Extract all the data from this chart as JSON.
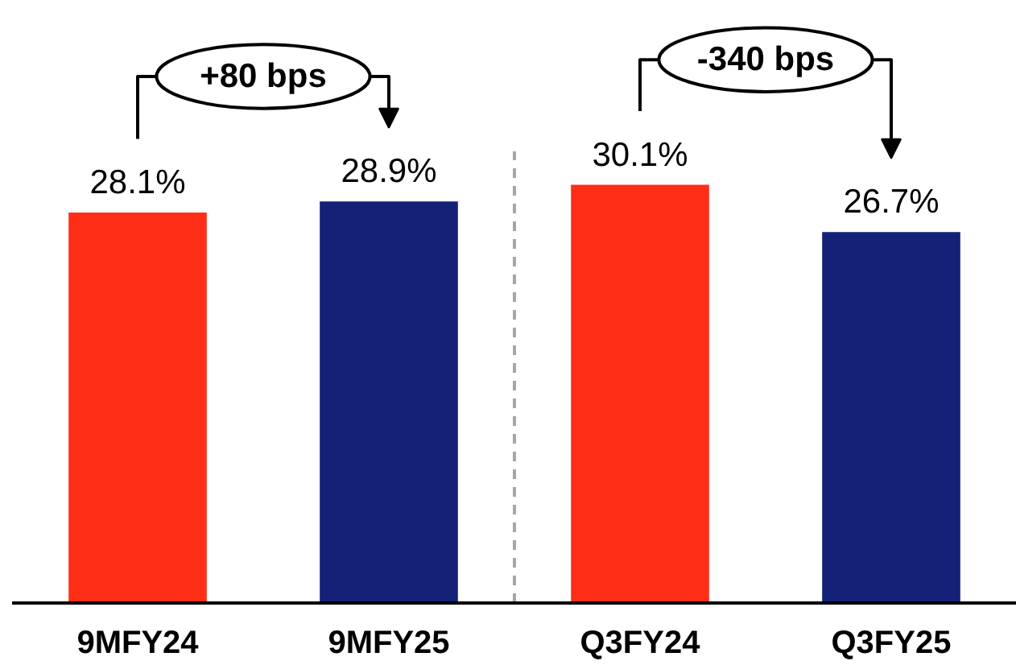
{
  "chart_data": {
    "type": "bar",
    "categories": [
      "9MFY24",
      "9MFY25",
      "Q3FY24",
      "Q3FY25"
    ],
    "values": [
      28.1,
      28.9,
      30.1,
      26.7
    ],
    "colors": [
      "#ff2e17",
      "#132177",
      "#ff2e17",
      "#132177"
    ],
    "value_labels": [
      "28.1%",
      "28.9%",
      "30.1%",
      "26.7%"
    ],
    "annotations": [
      "+80 bps",
      "-340 bps"
    ],
    "grid": false
  }
}
